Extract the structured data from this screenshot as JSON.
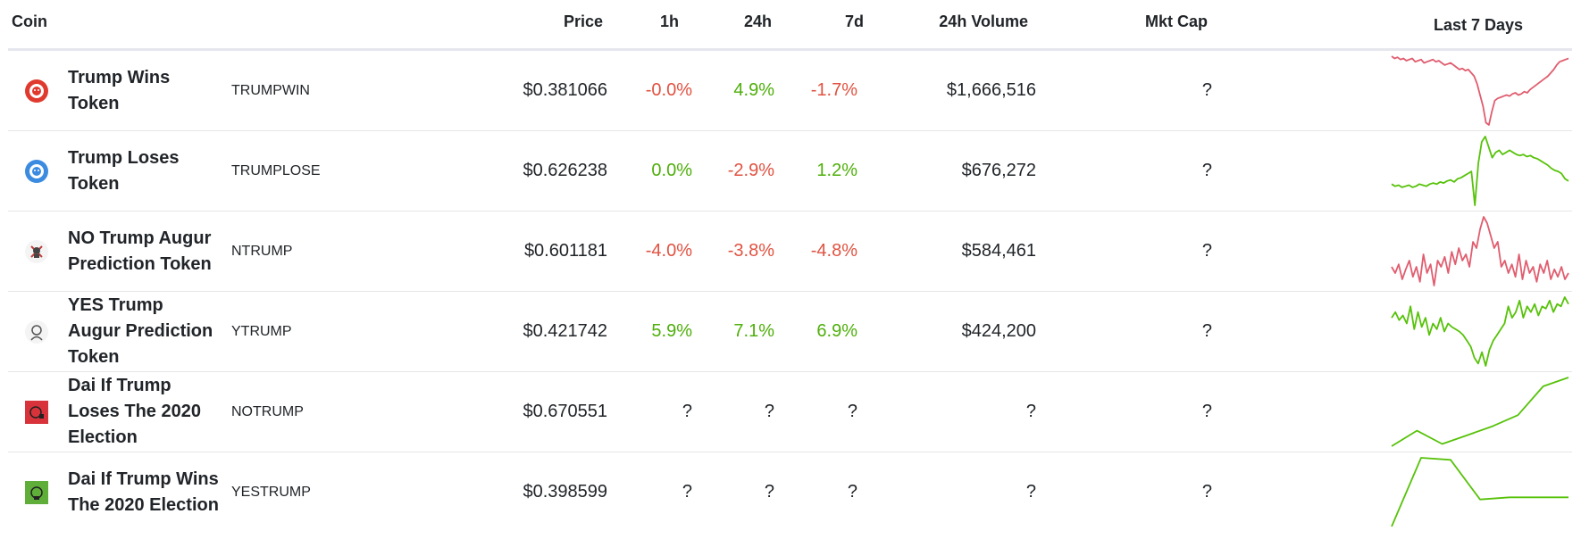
{
  "header": {
    "coin": "Coin",
    "price": "Price",
    "h1": "1h",
    "h24": "24h",
    "d7": "7d",
    "volume": "24h Volume",
    "mktcap": "Mkt Cap",
    "last7": "Last 7 Days"
  },
  "colors": {
    "negative": "#e15241",
    "positive": "#4eaf0a",
    "spark_red": "#e05d6f",
    "spark_green": "#57c20a"
  },
  "rows": [
    {
      "icon": "red-lion-icon",
      "name": "Trump Wins Token",
      "symbol": "TRUMPWIN",
      "price": "$0.381066",
      "h1": "-0.0%",
      "h1_class": "neg",
      "h24": "4.9%",
      "h24_class": "pos",
      "d7": "-1.7%",
      "d7_class": "neg",
      "volume": "$1,666,516",
      "mktcap": "?",
      "spark_color": "red",
      "spark": [
        10,
        12,
        11,
        13,
        12,
        14,
        13,
        12,
        15,
        14,
        13,
        16,
        15,
        14,
        13,
        15,
        14,
        16,
        18,
        17,
        16,
        18,
        20,
        22,
        21,
        23,
        22,
        25,
        28,
        35,
        45,
        55,
        70,
        72,
        60,
        50,
        48,
        47,
        46,
        45,
        46,
        44,
        43,
        45,
        44,
        42,
        43,
        40,
        38,
        36,
        34,
        32,
        30,
        28,
        25,
        22,
        18,
        15,
        14,
        13,
        12
      ]
    },
    {
      "icon": "blue-lion-icon",
      "name": "Trump Loses Token",
      "symbol": "TRUMPLOSE",
      "price": "$0.626238",
      "h1": "0.0%",
      "h1_class": "pos",
      "h24": "-2.9%",
      "h24_class": "neg",
      "d7": "1.2%",
      "d7_class": "pos",
      "volume": "$676,272",
      "mktcap": "?",
      "spark_color": "green",
      "spark": [
        60,
        62,
        61,
        63,
        62,
        61,
        63,
        62,
        60,
        61,
        62,
        60,
        59,
        60,
        58,
        59,
        57,
        56,
        58,
        55,
        54,
        52,
        50,
        48,
        80,
        40,
        20,
        15,
        25,
        35,
        30,
        28,
        32,
        30,
        28,
        30,
        32,
        33,
        32,
        34,
        33,
        35,
        36,
        38,
        40,
        42,
        45,
        47,
        48,
        50,
        55,
        57
      ]
    },
    {
      "icon": "skull-icon",
      "name": "NO Trump Augur Prediction Token",
      "symbol": "NTRUMP",
      "price": "$0.601181",
      "h1": "-4.0%",
      "h1_class": "neg",
      "h24": "-3.8%",
      "h24_class": "neg",
      "d7": "-4.8%",
      "d7_class": "neg",
      "volume": "$584,461",
      "mktcap": "?",
      "spark_color": "red",
      "spark": [
        50,
        55,
        48,
        60,
        52,
        45,
        58,
        50,
        62,
        40,
        55,
        48,
        65,
        45,
        50,
        42,
        55,
        38,
        48,
        35,
        45,
        40,
        50,
        30,
        35,
        20,
        10,
        15,
        25,
        35,
        30,
        50,
        45,
        55,
        48,
        58,
        40,
        60,
        45,
        55,
        50,
        62,
        48,
        55,
        45,
        60,
        52,
        58,
        50,
        60,
        55
      ]
    },
    {
      "icon": "trump-face-icon",
      "name": "YES Trump Augur Prediction Token",
      "symbol": "YTRUMP",
      "price": "$0.421742",
      "h1": "5.9%",
      "h1_class": "pos",
      "h24": "7.1%",
      "h24_class": "pos",
      "d7": "6.9%",
      "d7_class": "pos",
      "volume": "$424,200",
      "mktcap": "?",
      "spark_color": "green",
      "spark": [
        30,
        25,
        32,
        28,
        35,
        20,
        40,
        25,
        38,
        30,
        45,
        35,
        40,
        30,
        42,
        35,
        38,
        40,
        42,
        45,
        50,
        55,
        65,
        70,
        60,
        72,
        58,
        50,
        45,
        40,
        35,
        20,
        30,
        25,
        15,
        30,
        20,
        25,
        18,
        28,
        20,
        22,
        15,
        25,
        18,
        20,
        12,
        18
      ]
    },
    {
      "icon": "red-flag-icon",
      "name": "Dai If Trump Loses The 2020 Election",
      "symbol": "NOTRUMP",
      "price": "$0.670551",
      "h1": "?",
      "h1_class": "na",
      "h24": "?",
      "h24_class": "na",
      "d7": "?",
      "d7_class": "na",
      "volume": "?",
      "mktcap": "?",
      "spark_color": "green",
      "spark": [
        72,
        58,
        70,
        62,
        54,
        44,
        18,
        10
      ]
    },
    {
      "icon": "green-flag-icon",
      "name": "Dai If Trump Wins The 2020 Election",
      "symbol": "YESTRUMP",
      "price": "$0.398599",
      "h1": "?",
      "h1_class": "na",
      "h24": "?",
      "h24_class": "na",
      "d7": "?",
      "d7_class": "na",
      "volume": "?",
      "mktcap": "?",
      "spark_color": "green",
      "spark": [
        78,
        12,
        14,
        52,
        50,
        50,
        50
      ]
    }
  ]
}
